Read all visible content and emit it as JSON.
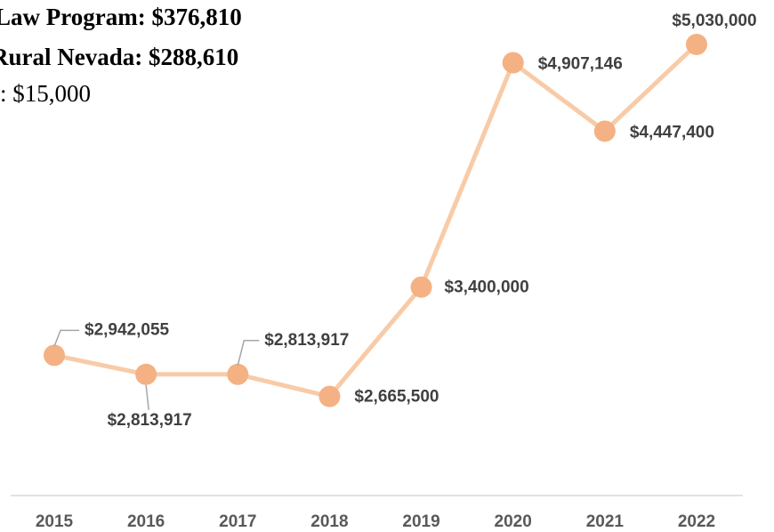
{
  "chart_data": {
    "type": "line",
    "annotations": [
      "Law Program: $376,810",
      "Rural Nevada: $288,610",
      ": $15,000"
    ],
    "categories": [
      "2015",
      "2016",
      "2017",
      "2018",
      "2019",
      "2020",
      "2021",
      "2022"
    ],
    "series": [
      {
        "color": "#f4b183",
        "values": [
          2942055,
          2813917,
          2813917,
          2665500,
          3400000,
          4907146,
          4447400,
          5030000
        ],
        "value_labels": [
          "$2,942,055",
          "$2,813,917",
          "$2,813,917",
          "$2,665,500",
          "$3,400,000",
          "$4,907,146",
          "$4,447,400",
          "$5,030,000"
        ]
      }
    ],
    "ylim": [
      2000000,
      5200000
    ]
  }
}
